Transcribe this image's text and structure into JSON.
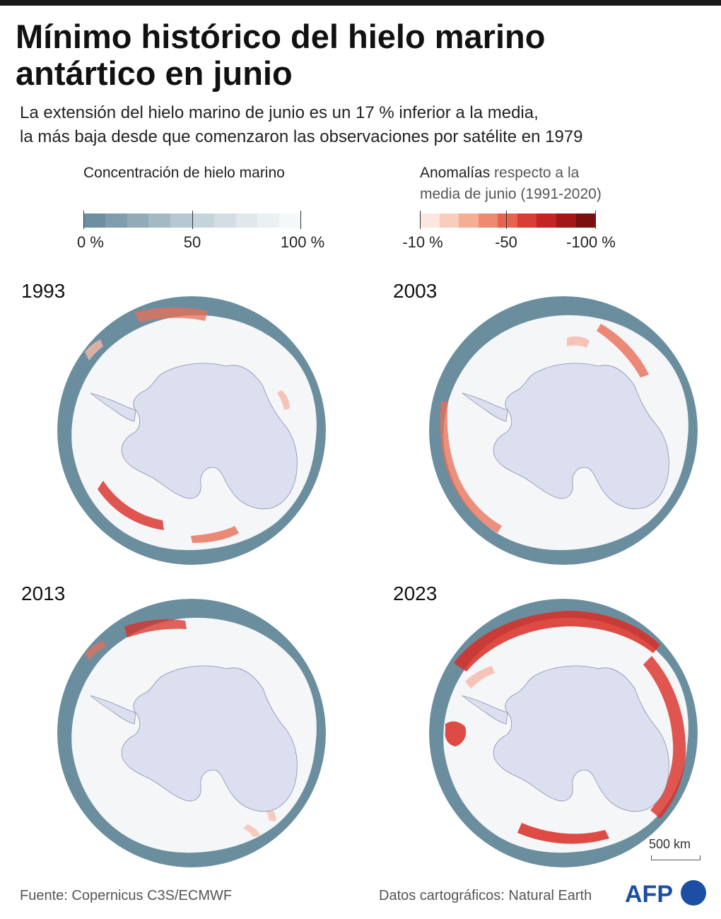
{
  "title": {
    "line1": "Mínimo histórico del hielo marino",
    "line2": "antártico en junio"
  },
  "subtitle": {
    "line1": "La extensión del hielo marino de junio es un 17 % inferior a la media,",
    "line2": "la más baja desde que comenzaron las observaciones por satélite en 1979"
  },
  "legend_concentration": {
    "title": "Concentración de hielo marino",
    "ticks": [
      "0 %",
      "50",
      "100 %"
    ],
    "colors": [
      "#6d8fa0",
      "#7f9dac",
      "#91abb8",
      "#a3b9c4",
      "#b5c7d0",
      "#c5d3db",
      "#d3dee4",
      "#e0e8ec",
      "#ebf0f3",
      "#f5f8f9"
    ]
  },
  "legend_anomaly": {
    "title_strong": "Anomalías",
    "title_rest": " respecto a la",
    "title_line2": "media de junio (1991-2020)",
    "ticks": [
      "-10 %",
      "-50",
      "-100 %"
    ],
    "colors": [
      "#fbe7df",
      "#f9cdbc",
      "#f5ad96",
      "#ef8a70",
      "#e6634d",
      "#d83e33",
      "#c42424",
      "#a31717",
      "#7a1010"
    ]
  },
  "colors": {
    "ocean": "#6b8e9e",
    "sea_ice": "#f4f6f8",
    "land": "#dcdff0",
    "anomaly_light": "#f6b8a6",
    "anomaly_mid": "#ea6d55",
    "anomaly_strong": "#d92d25"
  },
  "maps": [
    {
      "year": "1993",
      "anomaly_level": "moderate"
    },
    {
      "year": "2003",
      "anomaly_level": "moderate"
    },
    {
      "year": "2013",
      "anomaly_level": "low"
    },
    {
      "year": "2023",
      "anomaly_level": "high"
    }
  ],
  "scale_bar": {
    "label": "500 km"
  },
  "source": "Fuente: Copernicus C3S/ECMWF",
  "map_credit": "Datos cartográficos: Natural Earth",
  "logo_text": "AFP"
}
